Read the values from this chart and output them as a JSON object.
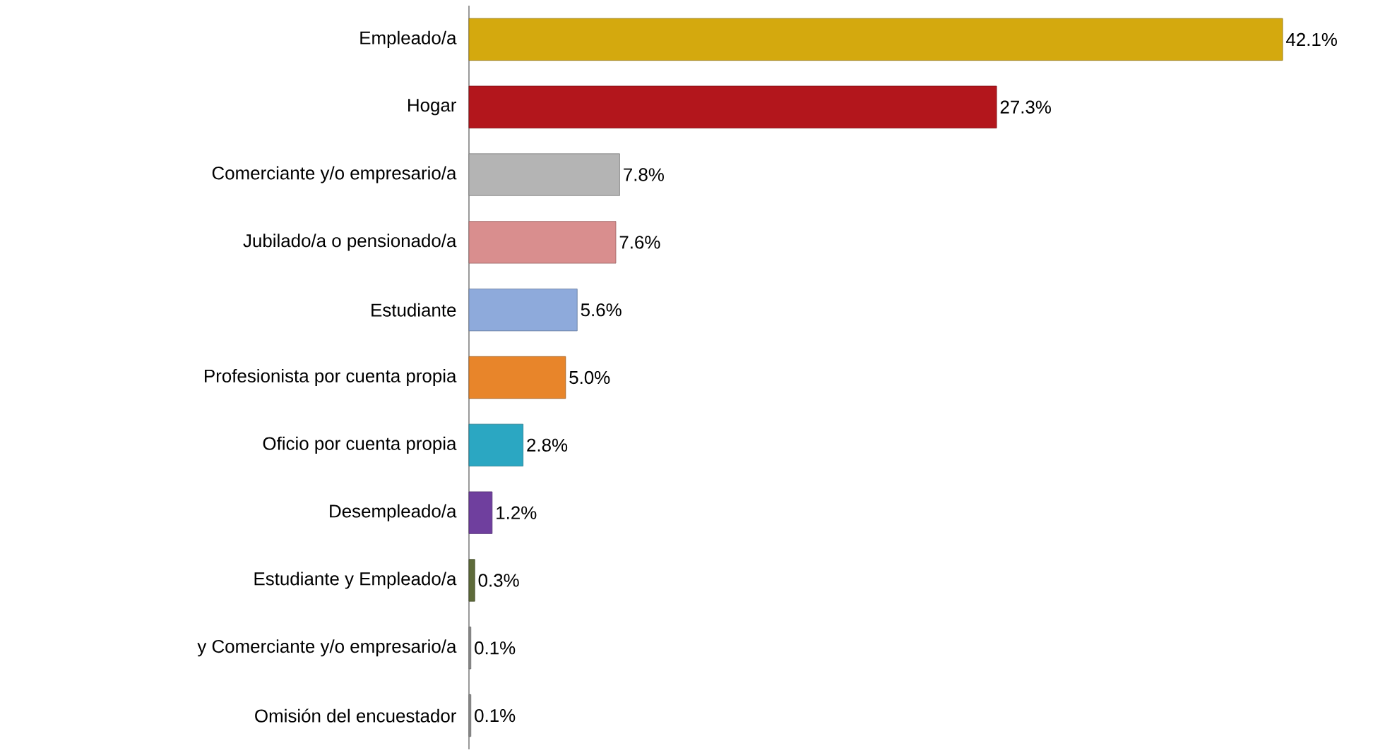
{
  "chart_data": {
    "type": "bar",
    "orientation": "horizontal",
    "categories": [
      "Empleado/a",
      "Hogar",
      "Comerciante y/o empresario/a",
      "Jubilado/a o pensionado/a",
      "Estudiante",
      "Profesionista por cuenta propia",
      "Oficio por cuenta propia",
      "Desempleado/a",
      "Estudiante y Empleado/a",
      "y Comerciante y/o empresario/a",
      "Omisión del encuestador"
    ],
    "values": [
      42.1,
      27.3,
      7.8,
      7.6,
      5.6,
      5.0,
      2.8,
      1.2,
      0.3,
      0.1,
      0.1
    ],
    "value_labels": [
      "42.1%",
      "27.3%",
      "7.8%",
      "7.6%",
      "5.6%",
      "5.0%",
      "2.8%",
      "1.2%",
      "0.3%",
      "0.1%",
      "0.1%"
    ],
    "colors": [
      "#d4a90e",
      "#b3161c",
      "#b4b4b4",
      "#d98e8e",
      "#8eaadb",
      "#e8852a",
      "#2ba7c2",
      "#6f3f9e",
      "#5e6b3a",
      "#909090",
      "#909090"
    ]
  }
}
